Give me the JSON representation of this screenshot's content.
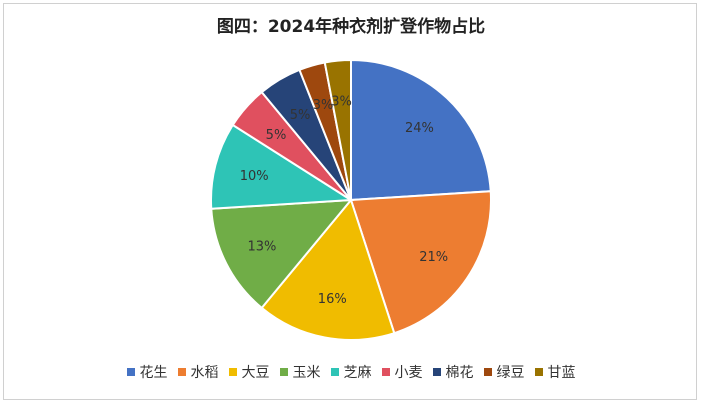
{
  "chart_data": {
    "type": "pie",
    "title": "图四：2024年种衣剂扩登作物占比",
    "categories": [
      "花生",
      "水稻",
      "大豆",
      "玉米",
      "芝麻",
      "小麦",
      "棉花",
      "绿豆",
      "甘蓝"
    ],
    "values": [
      24,
      21,
      16,
      13,
      10,
      5,
      5,
      3,
      3
    ],
    "labels": [
      "24%",
      "21%",
      "16%",
      "13%",
      "10%",
      "5%",
      "5%",
      "3%",
      "3%"
    ],
    "colors": [
      "#4472C4",
      "#ED7D31",
      "#F0BC00",
      "#70AD47",
      "#2EC4B6",
      "#E0505F",
      "#264478",
      "#9E480E",
      "#997300"
    ],
    "legend_position": "bottom",
    "start_angle": "12 o'clock",
    "direction": "clockwise"
  }
}
